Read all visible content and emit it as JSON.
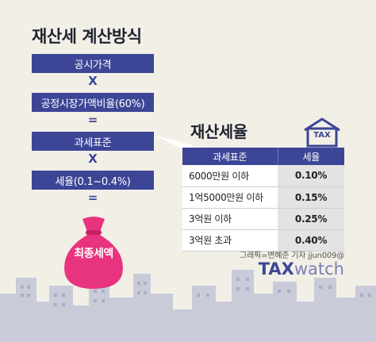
{
  "title": "재산세 계산방식",
  "flow": {
    "box1": "공시가격",
    "op1": "X",
    "box2": "공정시장가액비율(60%)",
    "op2": "=",
    "box3": "과세표준",
    "op3": "X",
    "box4": "세율(0.1~0.4%)",
    "op4": "=",
    "result": "최종세액"
  },
  "rate_table": {
    "title": "재산세율",
    "tax_icon": "TAX",
    "headers": [
      "과세표준",
      "세율"
    ],
    "rows": [
      {
        "base": "6000만원 이하",
        "rate": "0.10%"
      },
      {
        "base": "1억5000만원 이하",
        "rate": "0.15%"
      },
      {
        "base": "3억원 이하",
        "rate": "0.25%"
      },
      {
        "base": "3억원 초과",
        "rate": "0.40%"
      }
    ]
  },
  "credit": "그래픽=변혜준 기자 jjun009@",
  "logo": {
    "part1": "TAX",
    "part2": "watch"
  },
  "colors": {
    "accent": "#3d4696",
    "bag": "#e8347e",
    "background": "#f2efe7"
  }
}
